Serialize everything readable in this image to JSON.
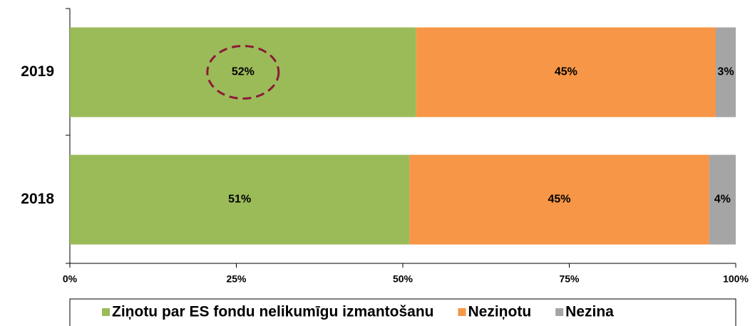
{
  "chart_data": {
    "type": "stacked_bar_horizontal",
    "categories": [
      "2019",
      "2018"
    ],
    "series": [
      {
        "name": "Ziņotu par ES fondu nelikumīgu izmantošanu",
        "color": "#9bbb59",
        "values": [
          52,
          51
        ],
        "value_labels": [
          "52%",
          "51%"
        ]
      },
      {
        "name": "Neziņotu",
        "color": "#f79646",
        "values": [
          45,
          45
        ],
        "value_labels": [
          "45%",
          "45%"
        ]
      },
      {
        "name": "Nezina",
        "color": "#a5a5a5",
        "values": [
          3,
          4
        ],
        "value_labels": [
          "3%",
          "4%"
        ]
      }
    ],
    "xlim": [
      0,
      100
    ],
    "xticks": [
      {
        "value": 0,
        "label": "0%"
      },
      {
        "value": 25,
        "label": "25%"
      },
      {
        "value": 50,
        "label": "50%"
      },
      {
        "value": 75,
        "label": "75%"
      },
      {
        "value": 100,
        "label": "100%"
      }
    ],
    "legend": "bottom"
  }
}
